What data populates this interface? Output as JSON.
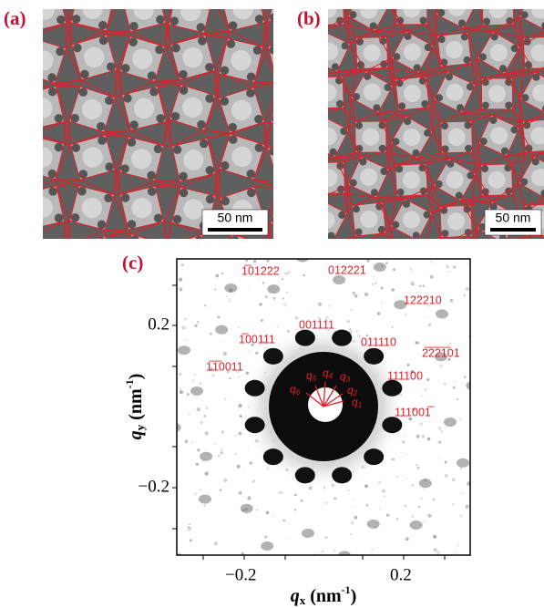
{
  "panels": [
    {
      "label": "(a)",
      "scale_bar": "50 nm"
    },
    {
      "label": "(b)",
      "scale_bar": "50 nm"
    }
  ],
  "diffraction": {
    "label": "(c)",
    "x_axis": {
      "symbol": "q",
      "sub": "x",
      "unit": " (nm",
      "sup": "-1",
      "close": ")"
    },
    "y_axis": {
      "symbol": "q",
      "sub": "y",
      "unit": " (nm",
      "sup": "-1",
      "close": ")"
    },
    "x_ticks": [
      "−0.2",
      "0.2"
    ],
    "y_ticks": [
      "0.2",
      "−0.2"
    ],
    "indices": [
      "1̅01222",
      "012221",
      "122210",
      "1̅00111",
      "001111",
      "011110",
      "2̅2̅2̅1̅01",
      "1̅1̅0011",
      "111100",
      "111001̅"
    ],
    "q_labels": [
      {
        "symbol": "q",
        "sub": "1"
      },
      {
        "symbol": "q",
        "sub": "2"
      },
      {
        "symbol": "q",
        "sub": "3"
      },
      {
        "symbol": "q",
        "sub": "4"
      },
      {
        "symbol": "q",
        "sub": "5"
      },
      {
        "symbol": "q",
        "sub": "6"
      }
    ]
  }
}
